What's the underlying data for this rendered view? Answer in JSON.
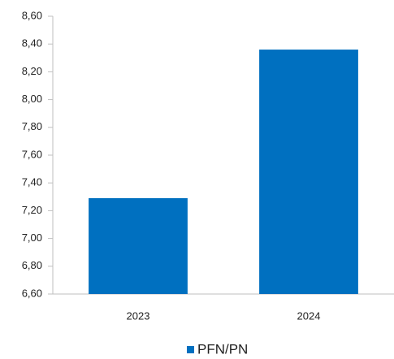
{
  "chart_data": {
    "type": "bar",
    "categories": [
      "2023",
      "2024"
    ],
    "series": [
      {
        "name": "PFN/PN",
        "color": "#0070c0",
        "values": [
          7.29,
          8.36
        ]
      }
    ],
    "ylim": [
      6.6,
      8.6
    ],
    "yticks": [
      {
        "value": 6.6,
        "label": "6,60"
      },
      {
        "value": 6.8,
        "label": "6,80"
      },
      {
        "value": 7.0,
        "label": "7,00"
      },
      {
        "value": 7.2,
        "label": "7,20"
      },
      {
        "value": 7.4,
        "label": "7,40"
      },
      {
        "value": 7.6,
        "label": "7,60"
      },
      {
        "value": 7.8,
        "label": "7,80"
      },
      {
        "value": 8.0,
        "label": "8,00"
      },
      {
        "value": 8.2,
        "label": "8,20"
      },
      {
        "value": 8.4,
        "label": "8,40"
      },
      {
        "value": 8.6,
        "label": "8,60"
      }
    ],
    "grid": false,
    "legend": "bottom"
  }
}
